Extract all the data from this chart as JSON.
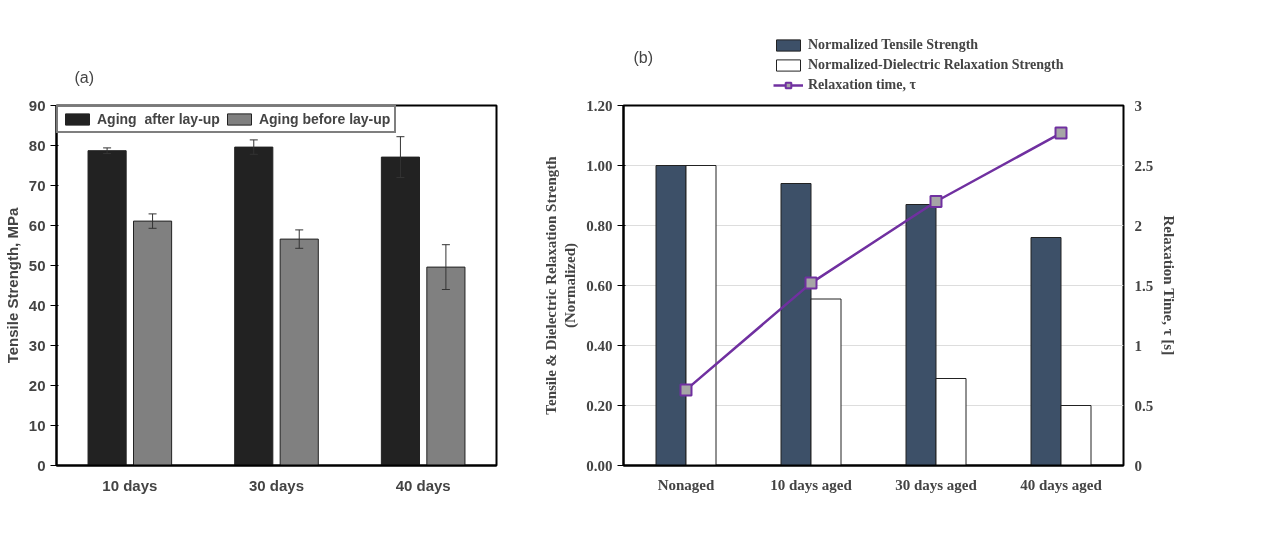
{
  "chart_data": [
    {
      "type": "bar",
      "annotations": [
        "(a)"
      ],
      "ylabel": "Tensile Strength, MPa",
      "categories": [
        "10 days",
        "30 days",
        "40 days"
      ],
      "series": [
        {
          "name": "Aging  after lay-up",
          "color": "#222222",
          "values": [
            78.7,
            79.6,
            77.1
          ],
          "errors": [
            0.7,
            1.8,
            5.1
          ]
        },
        {
          "name": "Aging before lay-up",
          "color": "#808080",
          "values": [
            61.1,
            56.6,
            49.6
          ],
          "errors": [
            1.8,
            2.3,
            5.6
          ]
        }
      ],
      "ylim": [
        0,
        90
      ],
      "yticks": [
        0,
        10,
        20,
        30,
        40,
        50,
        60,
        70,
        80,
        90
      ],
      "grid": false,
      "legend": "top"
    },
    {
      "type": "bar",
      "annotations": [
        "(b)"
      ],
      "ylabel": "Tensile & Dielectric Relaxation Strength\n(Normalized)",
      "y2label": "Relaxation Time, τ [s]",
      "categories": [
        "Nonaged",
        "10 days aged",
        "30 days aged",
        "40 days aged"
      ],
      "series": [
        {
          "name": "Normalized Tensile Strength",
          "color": "#3d5068",
          "values": [
            1.0,
            0.94,
            0.87,
            0.76
          ]
        },
        {
          "name": "Normalized-Dielectric Relaxation Strength",
          "color": "#ffffff",
          "values": [
            1.0,
            0.555,
            0.29,
            0.2
          ]
        },
        {
          "name": "Relaxation time, τ",
          "type": "line",
          "axis": "y2",
          "marker": "square",
          "color": "#7030a0",
          "values": [
            0.63,
            1.52,
            2.2,
            2.77
          ]
        }
      ],
      "ylim": [
        0,
        1.2
      ],
      "yticks": [
        {
          "value": 0,
          "label": "0.00"
        },
        {
          "value": 0.2,
          "label": "0.20"
        },
        {
          "value": 0.4,
          "label": "0.40"
        },
        {
          "value": 0.6,
          "label": "0.60"
        },
        {
          "value": 0.8,
          "label": "0.80"
        },
        {
          "value": 1.0,
          "label": "1.00"
        },
        {
          "value": 1.2,
          "label": "1.20"
        }
      ],
      "y2lim": [
        0,
        3
      ],
      "y2ticks": [
        0,
        0.5,
        1,
        1.5,
        2,
        2.5,
        3
      ],
      "grid": "y",
      "legend": "top"
    }
  ]
}
